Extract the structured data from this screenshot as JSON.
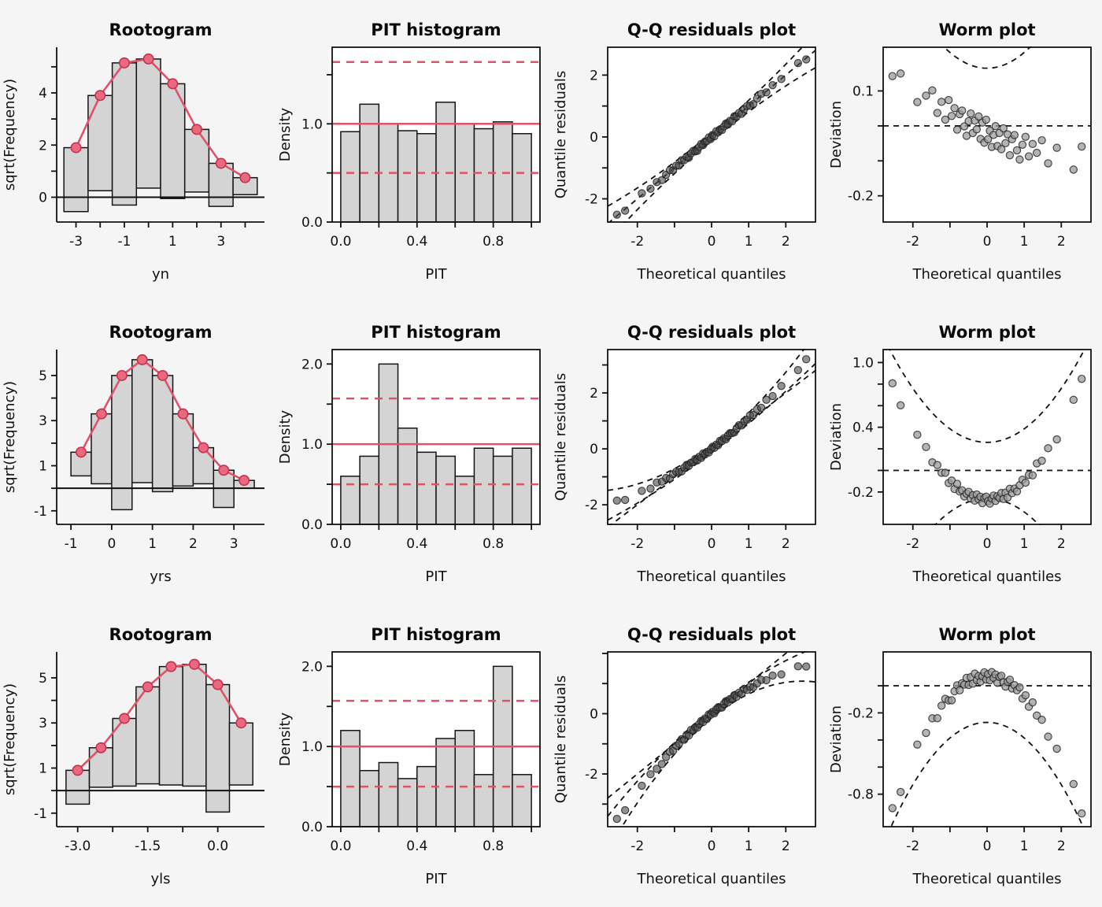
{
  "page": {
    "background": "#f5f5f5"
  },
  "colors": {
    "accent_line": "#e0516a",
    "accent_fill": "#ea697f",
    "accent_stroke": "#c2334f",
    "bar_fill": "#d4d4d4",
    "bar_stroke": "#141414",
    "axis": "#111111",
    "qq_point": "#4a4a4a",
    "worm_point": "#9b9b9b"
  },
  "chart_data": {
    "qx": [
      -2.55,
      -2.33,
      -1.88,
      -1.645,
      -1.476,
      -1.34,
      -1.227,
      -1.126,
      -1.036,
      -0.954,
      -0.878,
      -0.806,
      -0.739,
      -0.674,
      -0.613,
      -0.553,
      -0.496,
      -0.44,
      -0.385,
      -0.332,
      -0.279,
      -0.228,
      -0.176,
      -0.126,
      -0.075,
      -0.025,
      0.025,
      0.075,
      0.126,
      0.176,
      0.228,
      0.279,
      0.332,
      0.385,
      0.44,
      0.496,
      0.553,
      0.613,
      0.674,
      0.739,
      0.806,
      0.878,
      0.954,
      1.036,
      1.126,
      1.227,
      1.34,
      1.476,
      1.645,
      1.88,
      2.33,
      2.55
    ],
    "noise": [
      0.42,
      -0.58,
      0.66,
      -0.31,
      0.18,
      -0.62,
      0.05,
      0.55,
      -0.44,
      0.28,
      -0.52,
      0.61,
      -0.12,
      0.38,
      -0.66,
      0.22,
      0.48,
      -0.27,
      -0.7,
      0.12,
      0.58,
      -0.38,
      0.32,
      -0.08,
      0.64,
      -0.48
    ],
    "panels": [
      {
        "type": "rootogram",
        "title": "Rootogram",
        "xlabel": "yn",
        "ylabel": "sqrt(Frequency)",
        "xlim": [
          -3.8,
          4.8
        ],
        "ylim": [
          -0.95,
          5.75
        ],
        "xticks": {
          "v": [
            -3,
            -2,
            -1,
            0,
            1,
            2,
            3,
            4
          ],
          "l": [
            "-3",
            "",
            "-1",
            "",
            "1",
            "",
            "3",
            ""
          ]
        },
        "yticks": {
          "v": [
            0,
            1,
            2,
            3,
            4,
            5
          ],
          "l": [
            "0",
            "",
            "2",
            "",
            "4",
            ""
          ]
        },
        "bar_width": 1,
        "bar_x": [
          -3,
          -2,
          -1,
          0,
          1,
          2,
          3,
          4
        ],
        "bar_top": [
          1.9,
          3.9,
          5.15,
          5.3,
          4.35,
          2.6,
          1.3,
          0.75
        ],
        "bar_bottom": [
          -0.55,
          0.25,
          -0.3,
          0.35,
          -0.05,
          0.2,
          -0.35,
          0.1
        ]
      },
      {
        "type": "pit",
        "title": "PIT histogram",
        "xlabel": "PIT",
        "ylabel": "Density",
        "xlim": [
          -0.045,
          1.045
        ],
        "ylim": [
          0,
          1.78
        ],
        "xticks": {
          "v": [
            0,
            0.2,
            0.4,
            0.6,
            0.8,
            1
          ],
          "l": [
            "0.0",
            "",
            "0.4",
            "",
            "0.8",
            ""
          ]
        },
        "yticks": {
          "v": [
            0,
            0.5,
            1,
            1.5
          ],
          "l": [
            "0.0",
            "",
            "1.0",
            ""
          ]
        },
        "values": [
          0.92,
          1.2,
          1.0,
          0.93,
          0.9,
          1.22,
          1.0,
          0.95,
          1.02,
          0.9
        ],
        "ref_line": 1.0,
        "ref_band": [
          0.5,
          1.63
        ]
      },
      {
        "type": "qq",
        "title": "Q-Q residuals plot",
        "xlabel": "Theoretical quantiles",
        "ylabel": "Quantile residuals",
        "xlim": [
          -2.8,
          2.8
        ],
        "ylim": [
          -2.75,
          2.9
        ],
        "xticks": {
          "v": [
            -2,
            -1,
            0,
            1,
            2
          ],
          "l": [
            "-2",
            "",
            "0",
            "1",
            "2"
          ]
        },
        "yticks": {
          "v": [
            -2,
            -1,
            0,
            1,
            2
          ],
          "l": [
            "-2",
            "",
            "0",
            "",
            "2"
          ]
        },
        "trend": [
          0,
          1,
          0
        ],
        "noise_scale": 0.09,
        "noise_offset": 0,
        "ref_line": [
          0,
          1,
          0
        ],
        "bands": [
          [
            0.13,
            1,
            0.055
          ],
          [
            -0.13,
            1,
            -0.055
          ]
        ]
      },
      {
        "type": "worm",
        "title": "Worm plot",
        "xlabel": "Theoretical quantiles",
        "ylabel": "Deviation",
        "xlim": [
          -2.8,
          2.8
        ],
        "ylim": [
          -0.275,
          0.225
        ],
        "xticks": {
          "v": [
            -2,
            -1,
            0,
            1,
            2
          ],
          "l": [
            "-2",
            "",
            "0",
            "1",
            "2"
          ]
        },
        "yticks": {
          "v": [
            -0.2,
            -0.1,
            0,
            0.1
          ],
          "l": [
            "-0.2",
            "",
            "",
            "0.1"
          ]
        },
        "trend": [
          -0.02,
          -0.05,
          0.008
        ],
        "noise_scale": 0.055,
        "noise_offset": 3,
        "bands": [
          [
            0.165,
            0,
            0.045
          ],
          [
            -0.33,
            0,
            -0.045
          ]
        ]
      },
      {
        "type": "rootogram",
        "title": "Rootogram",
        "xlabel": "yrs",
        "ylabel": "sqrt(Frequency)",
        "xlim": [
          -1.35,
          3.75
        ],
        "ylim": [
          -1.6,
          6.15
        ],
        "xticks": {
          "v": [
            -1,
            0,
            1,
            2,
            3
          ],
          "l": [
            "-1",
            "0",
            "1",
            "2",
            "3"
          ]
        },
        "yticks": {
          "v": [
            -1,
            0,
            1,
            2,
            3,
            4,
            5
          ],
          "l": [
            "-1",
            "",
            "1",
            "",
            "3",
            "",
            "5"
          ]
        },
        "bar_width": 0.5,
        "bar_x": [
          -0.75,
          -0.25,
          0.25,
          0.75,
          1.25,
          1.75,
          2.25,
          2.75,
          3.25
        ],
        "bar_top": [
          1.6,
          3.3,
          5.0,
          5.7,
          5.0,
          3.3,
          1.8,
          0.8,
          0.35
        ],
        "bar_bottom": [
          0.55,
          0.2,
          -0.95,
          0.25,
          -0.15,
          0.1,
          0.2,
          -0.85,
          0.0
        ]
      },
      {
        "type": "pit",
        "title": "PIT histogram",
        "xlabel": "PIT",
        "ylabel": "Density",
        "xlim": [
          -0.045,
          1.045
        ],
        "ylim": [
          0,
          2.18
        ],
        "xticks": {
          "v": [
            0,
            0.2,
            0.4,
            0.6,
            0.8,
            1
          ],
          "l": [
            "0.0",
            "",
            "0.4",
            "",
            "0.8",
            ""
          ]
        },
        "yticks": {
          "v": [
            0,
            0.5,
            1,
            1.5,
            2
          ],
          "l": [
            "0.0",
            "",
            "1.0",
            "",
            "2.0"
          ]
        },
        "values": [
          0.6,
          0.85,
          2.0,
          1.2,
          0.9,
          0.85,
          0.6,
          0.95,
          0.85,
          0.95
        ],
        "ref_line": 1.0,
        "ref_band": [
          0.5,
          1.57
        ]
      },
      {
        "type": "qq",
        "title": "Q-Q residuals plot",
        "xlabel": "Theoretical quantiles",
        "ylabel": "Quantile residuals",
        "xlim": [
          -2.8,
          2.8
        ],
        "ylim": [
          -2.7,
          3.55
        ],
        "xticks": {
          "v": [
            -2,
            -1,
            0,
            1,
            2
          ],
          "l": [
            "-2",
            "",
            "0",
            "1",
            "2"
          ]
        },
        "yticks": {
          "v": [
            -2,
            -1,
            0,
            1,
            2,
            3
          ],
          "l": [
            "-2",
            "",
            "0",
            "",
            "2",
            ""
          ]
        },
        "trend": [
          0,
          1,
          0.1
        ],
        "noise_scale": 0.09,
        "noise_offset": 7,
        "ref_line": [
          0,
          1,
          0
        ],
        "bands": [
          [
            0.14,
            1,
            0.15
          ],
          [
            -0.14,
            1,
            0.05
          ]
        ]
      },
      {
        "type": "worm",
        "title": "Worm plot",
        "xlabel": "Theoretical quantiles",
        "ylabel": "Deviation",
        "xlim": [
          -2.8,
          2.8
        ],
        "ylim": [
          -0.5,
          1.12
        ],
        "xticks": {
          "v": [
            -2,
            -1,
            0,
            1,
            2
          ],
          "l": [
            "-2",
            "",
            "0",
            "1",
            "2"
          ]
        },
        "yticks": {
          "v": [
            -0.2,
            0,
            0.2,
            0.4,
            0.6,
            0.8,
            1
          ],
          "l": [
            "-0.2",
            "",
            "",
            "0.4",
            "",
            "",
            "1.0"
          ]
        },
        "trend": [
          -0.27,
          0,
          0.168
        ],
        "noise_scale": 0.055,
        "noise_offset": 17,
        "bands": [
          [
            0.26,
            0,
            0.125
          ],
          [
            -0.26,
            0,
            -0.125
          ]
        ]
      },
      {
        "type": "rootogram",
        "title": "Rootogram",
        "xlabel": "yls",
        "ylabel": "sqrt(Frequency)",
        "xlim": [
          -3.45,
          1.0
        ],
        "ylim": [
          -1.6,
          6.15
        ],
        "xticks": {
          "v": [
            -3,
            -2.25,
            -1.5,
            -0.75,
            0
          ],
          "l": [
            "-3.0",
            "",
            "-1.5",
            "",
            "0.0"
          ]
        },
        "yticks": {
          "v": [
            -1,
            0,
            1,
            2,
            3,
            4,
            5
          ],
          "l": [
            "-1",
            "",
            "1",
            "",
            "3",
            "",
            "5"
          ]
        },
        "bar_width": 0.5,
        "bar_x": [
          -3,
          -2.5,
          -2,
          -1.5,
          -1,
          -0.5,
          0,
          0.5
        ],
        "bar_top": [
          0.9,
          1.9,
          3.2,
          4.6,
          5.5,
          5.6,
          4.7,
          3.0
        ],
        "bar_bottom": [
          -0.6,
          0.15,
          0.2,
          0.3,
          0.25,
          0.2,
          -0.95,
          0.25
        ]
      },
      {
        "type": "pit",
        "title": "PIT histogram",
        "xlabel": "PIT",
        "ylabel": "Density",
        "xlim": [
          -0.045,
          1.045
        ],
        "ylim": [
          0,
          2.18
        ],
        "xticks": {
          "v": [
            0,
            0.2,
            0.4,
            0.6,
            0.8,
            1
          ],
          "l": [
            "0.0",
            "",
            "0.4",
            "",
            "0.8",
            ""
          ]
        },
        "yticks": {
          "v": [
            0,
            0.5,
            1,
            1.5,
            2
          ],
          "l": [
            "0.0",
            "",
            "1.0",
            "",
            "2.0"
          ]
        },
        "values": [
          1.2,
          0.7,
          0.8,
          0.6,
          0.75,
          1.1,
          1.2,
          0.65,
          2.0,
          0.65
        ],
        "ref_line": 1.0,
        "ref_band": [
          0.5,
          1.57
        ]
      },
      {
        "type": "qq",
        "title": "Q-Q residuals plot",
        "xlabel": "Theoretical quantiles",
        "ylabel": "Quantile residuals",
        "xlim": [
          -2.8,
          2.8
        ],
        "ylim": [
          -3.75,
          2.05
        ],
        "xticks": {
          "v": [
            -2,
            -1,
            0,
            1,
            2
          ],
          "l": [
            "-2",
            "",
            "0",
            "1",
            "2"
          ]
        },
        "yticks": {
          "v": [
            -3,
            -2,
            -1,
            0,
            1,
            2
          ],
          "l": [
            "",
            "-2",
            "",
            "0",
            "",
            ""
          ]
        },
        "trend": [
          0,
          1,
          -0.15
        ],
        "noise_scale": 0.09,
        "noise_offset": 13,
        "ref_line": [
          0,
          1,
          0
        ],
        "bands": [
          [
            0.14,
            1,
            -0.095
          ],
          [
            -0.14,
            1,
            -0.205
          ]
        ]
      },
      {
        "type": "worm",
        "title": "Worm plot",
        "xlabel": "Theoretical quantiles",
        "ylabel": "Deviation",
        "xlim": [
          -2.8,
          2.8
        ],
        "ylim": [
          -1.04,
          0.25
        ],
        "xticks": {
          "v": [
            -2,
            -1,
            0,
            1,
            2
          ],
          "l": [
            "-2",
            "",
            "0",
            "1",
            "2"
          ]
        },
        "yticks": {
          "v": [
            -0.8,
            -0.6,
            -0.4,
            -0.2,
            0
          ],
          "l": [
            "-0.8",
            "",
            "",
            "-0.2",
            ""
          ]
        },
        "trend": [
          0.07,
          0,
          -0.152
        ],
        "noise_scale": 0.055,
        "noise_offset": 9,
        "bands": [
          [
            0.27,
            0,
            0.12
          ],
          [
            -0.27,
            0,
            -0.115
          ]
        ]
      }
    ]
  }
}
